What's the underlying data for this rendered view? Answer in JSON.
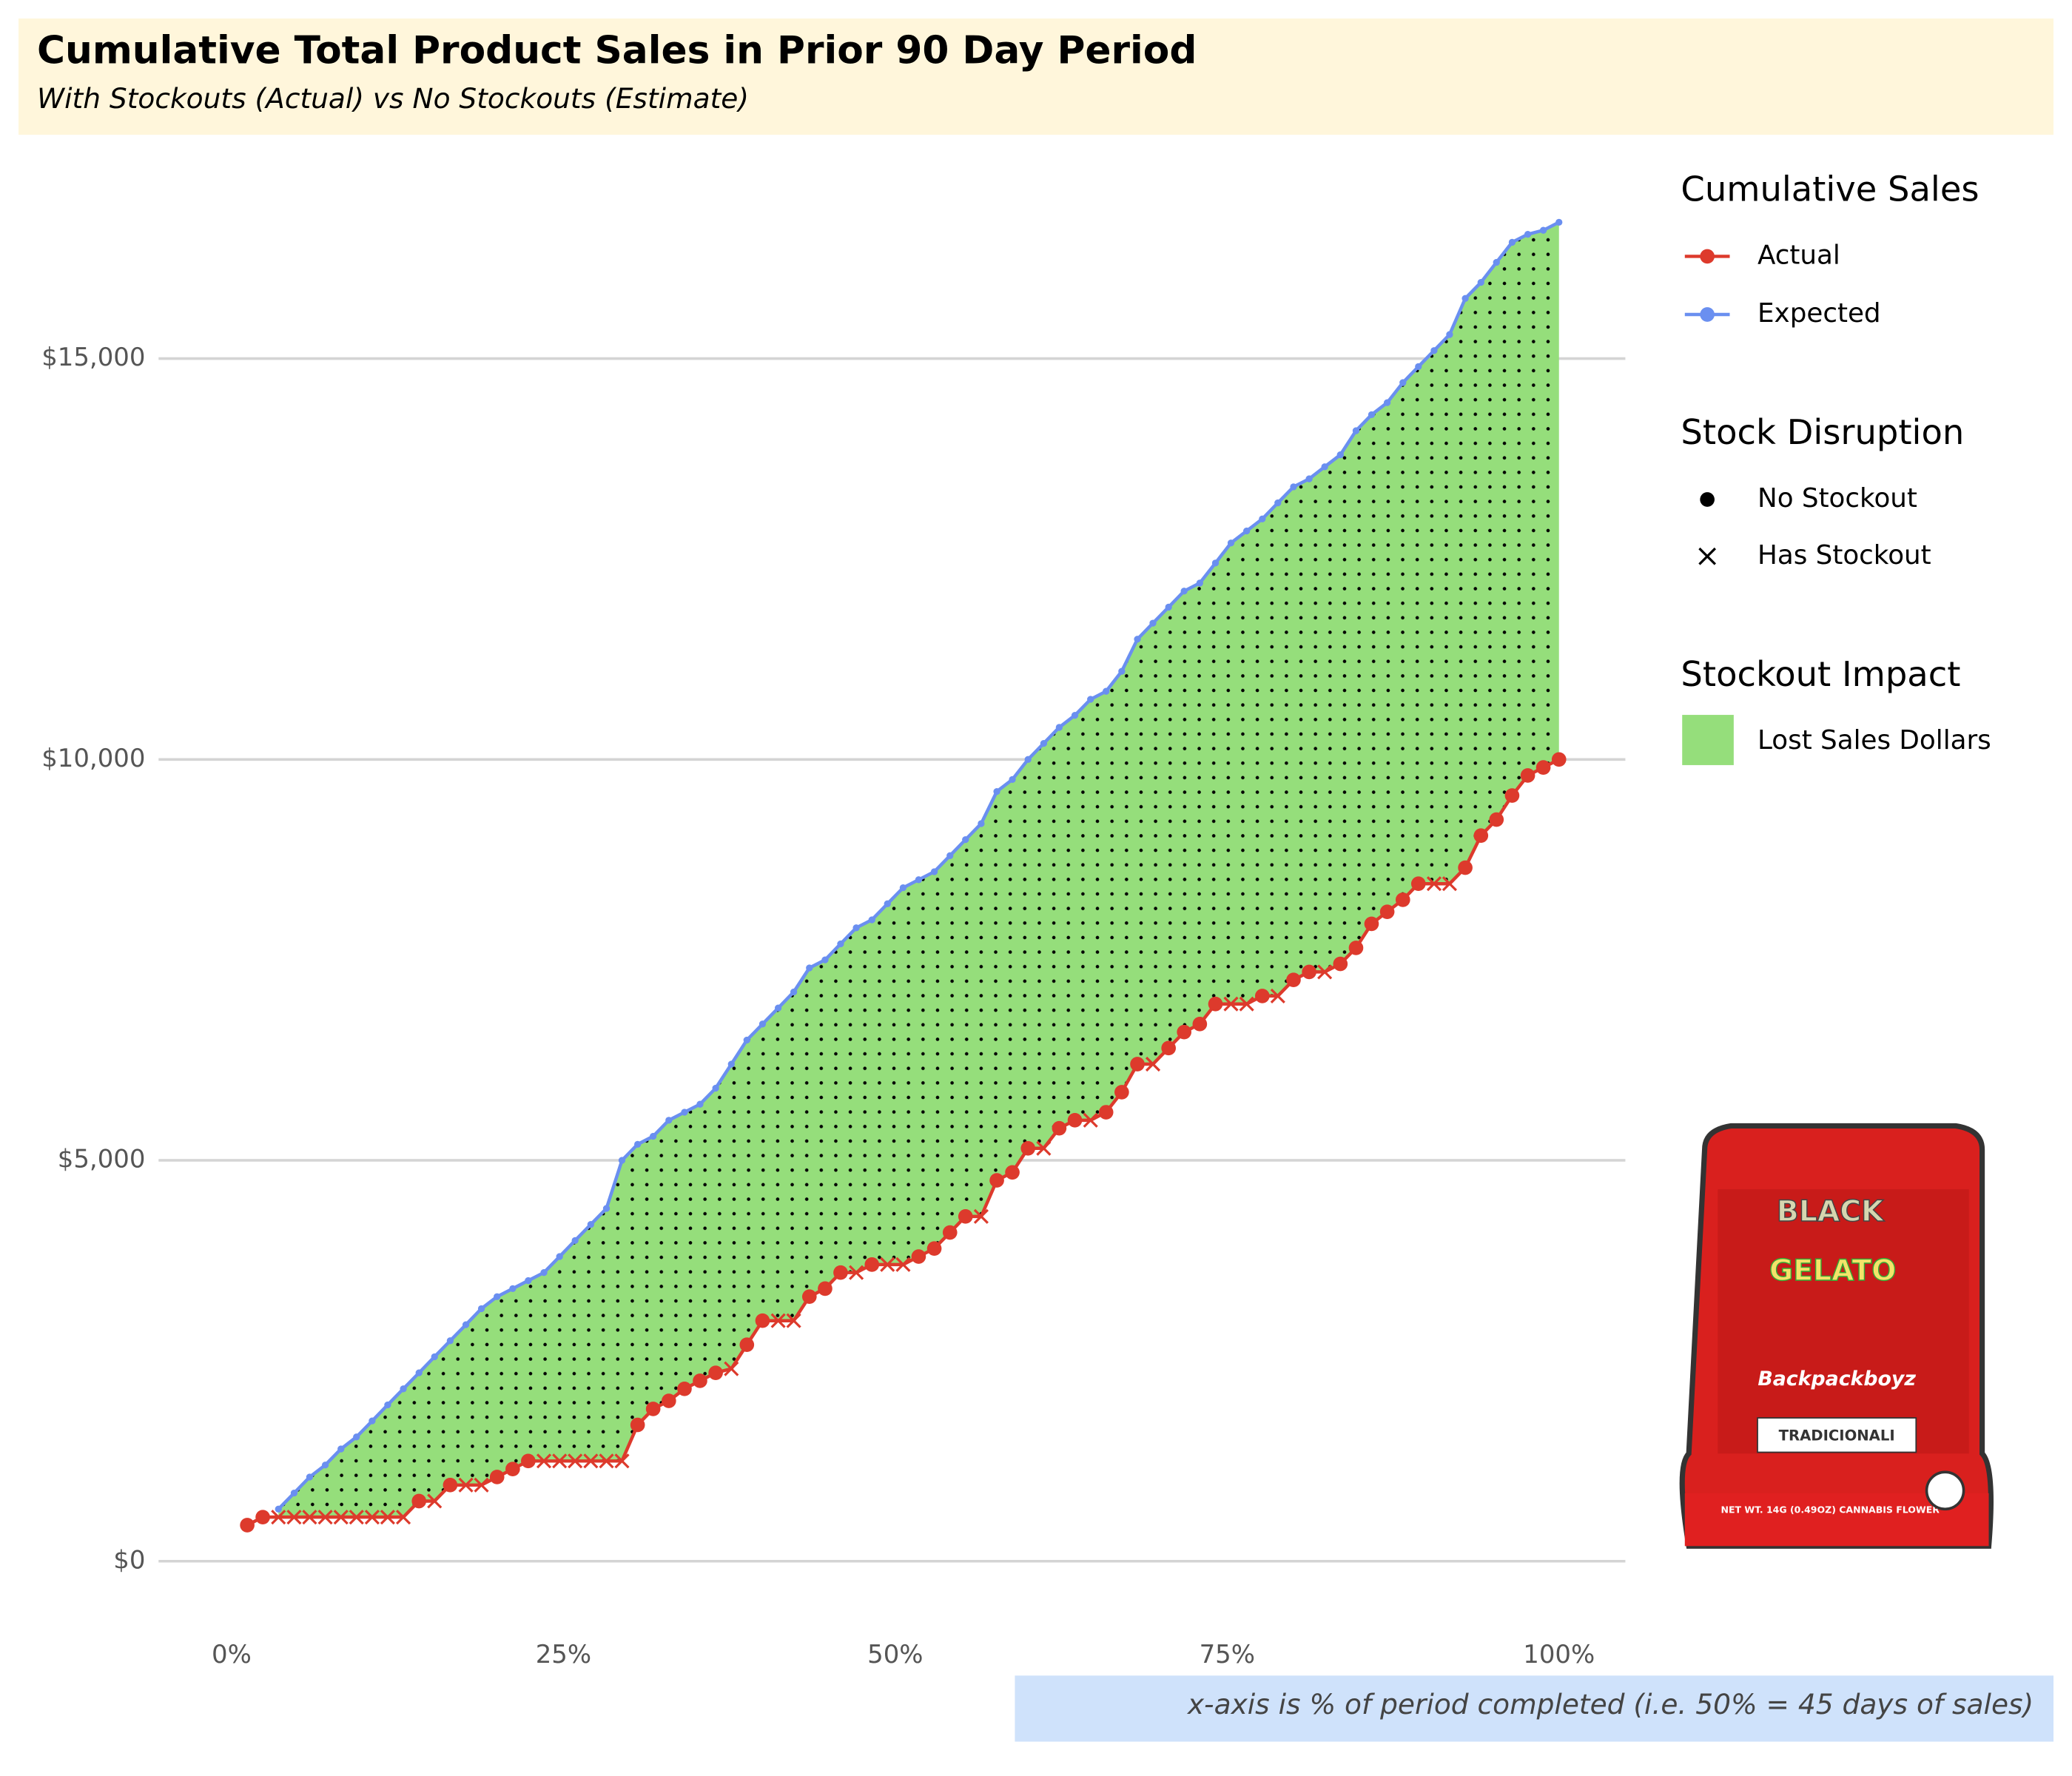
{
  "chart_data": {
    "type": "line",
    "title": "Cumulative Total Product Sales in Prior 90 Day Period",
    "subtitle": "With Stockouts (Actual) vs No Stockouts (Estimate)",
    "caption": "x-axis is % of period completed (i.e. 50% = 45 days of sales)",
    "xlim": [
      -5.5,
      105
    ],
    "ylim": [
      -800,
      17000
    ],
    "xticks": [
      {
        "value": 0,
        "label": "0%"
      },
      {
        "value": 25,
        "label": "25%"
      },
      {
        "value": 50,
        "label": "50%"
      },
      {
        "value": 75,
        "label": "75%"
      },
      {
        "value": 100,
        "label": "100%"
      }
    ],
    "yticks": [
      {
        "value": 0,
        "label": "$0"
      },
      {
        "value": 5000,
        "label": "$5,000"
      },
      {
        "value": 10000,
        "label": "$10,000"
      },
      {
        "value": 15000,
        "label": "$15,000"
      }
    ],
    "grid": true,
    "fill_between": true,
    "fill_color": "#95de7b",
    "fill_name": "Lost Sales Dollars",
    "legend_titles": [
      "Cumulative Sales",
      "Stock Disruption",
      "Stockout Impact"
    ],
    "shape_names": [
      "No Stockout",
      "Has Stockout"
    ],
    "x": [
      1.18,
      2.35,
      3.53,
      4.71,
      5.88,
      7.06,
      8.24,
      9.41,
      10.59,
      11.76,
      12.94,
      14.12,
      15.29,
      16.47,
      17.65,
      18.82,
      20,
      21.18,
      22.35,
      23.53,
      24.71,
      25.88,
      27.06,
      28.24,
      29.41,
      30.59,
      31.76,
      32.94,
      34.12,
      35.29,
      36.47,
      37.65,
      38.82,
      40,
      41.18,
      42.35,
      43.53,
      44.71,
      45.88,
      47.06,
      48.24,
      49.41,
      50.59,
      51.76,
      52.94,
      54.12,
      55.29,
      56.47,
      57.65,
      58.82,
      60,
      61.18,
      62.35,
      63.53,
      64.71,
      65.88,
      67.06,
      68.24,
      69.41,
      70.59,
      71.76,
      72.94,
      74.12,
      75.29,
      76.47,
      77.65,
      78.82,
      80,
      81.18,
      82.35,
      83.53,
      84.71,
      85.88,
      87.06,
      88.24,
      89.41,
      90.59,
      91.76,
      92.94,
      94.12,
      95.29,
      96.47,
      97.65,
      98.82,
      100
    ],
    "series": [
      {
        "name": "Actual",
        "color": "#dd3a2c",
        "values": [
          450,
          550,
          550,
          550,
          550,
          550,
          550,
          550,
          550,
          550,
          550,
          750,
          750,
          950,
          950,
          950,
          1050,
          1150,
          1250,
          1250,
          1250,
          1250,
          1250,
          1250,
          1250,
          1700,
          1900,
          2000,
          2150,
          2250,
          2350,
          2400,
          2700,
          3000,
          3000,
          3000,
          3300,
          3400,
          3600,
          3600,
          3700,
          3700,
          3700,
          3800,
          3900,
          4100,
          4300,
          4300,
          4750,
          4850,
          5150,
          5150,
          5400,
          5500,
          5500,
          5600,
          5850,
          6200,
          6200,
          6400,
          6600,
          6700,
          6950,
          6950,
          6950,
          7050,
          7050,
          7250,
          7350,
          7350,
          7450,
          7650,
          7950,
          8100,
          8250,
          8450,
          8450,
          8450,
          8650,
          9050,
          9250,
          9550,
          9800,
          9900,
          10000
        ],
        "stockout": [
          false,
          false,
          true,
          true,
          true,
          true,
          true,
          true,
          true,
          true,
          true,
          false,
          true,
          false,
          true,
          true,
          false,
          false,
          false,
          true,
          true,
          true,
          true,
          true,
          true,
          false,
          false,
          false,
          false,
          false,
          false,
          true,
          false,
          false,
          true,
          true,
          false,
          false,
          false,
          true,
          false,
          true,
          true,
          false,
          false,
          false,
          false,
          true,
          false,
          false,
          false,
          true,
          false,
          false,
          true,
          false,
          false,
          false,
          true,
          false,
          false,
          false,
          false,
          true,
          true,
          false,
          true,
          false,
          false,
          true,
          false,
          false,
          false,
          false,
          false,
          false,
          true,
          true,
          false,
          false,
          false,
          false,
          false,
          false,
          false
        ]
      },
      {
        "name": "Expected",
        "color": "#6a8ff0",
        "values": [
          null,
          null,
          650,
          850,
          1050,
          1200,
          1400,
          1550,
          1750,
          1950,
          2150,
          2350,
          2550,
          2750,
          2950,
          3150,
          3300,
          3400,
          3500,
          3600,
          3800,
          4000,
          4200,
          4400,
          5000,
          5200,
          5300,
          5500,
          5600,
          5700,
          5900,
          6200,
          6500,
          6700,
          6900,
          7100,
          7400,
          7500,
          7700,
          7900,
          8000,
          8200,
          8400,
          8500,
          8600,
          8800,
          9000,
          9200,
          9600,
          9750,
          10000,
          10200,
          10400,
          10550,
          10750,
          10850,
          11100,
          11500,
          11700,
          11900,
          12100,
          12200,
          12450,
          12700,
          12850,
          13000,
          13200,
          13400,
          13500,
          13650,
          13800,
          14100,
          14300,
          14450,
          14700,
          14900,
          15100,
          15300,
          15750,
          15950,
          16200,
          16450,
          16550,
          16600,
          16700
        ]
      }
    ]
  },
  "image_texts": [
    "BLACK",
    "GELATO",
    "Backpackboyz",
    "TRADICIONALI",
    "NET WT. 14G (0.49OZ) CANNABIS FLOWER"
  ]
}
